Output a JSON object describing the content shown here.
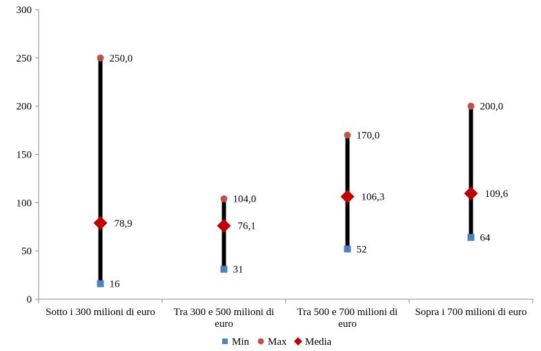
{
  "chart_data": {
    "type": "scatter",
    "title": "",
    "xlabel": "",
    "ylabel": "",
    "ylim": [
      0,
      300
    ],
    "yticks": [
      "0",
      "50",
      "100",
      "150",
      "200",
      "250",
      "300"
    ],
    "categories": [
      [
        "Sotto i 300 milioni di euro"
      ],
      [
        "Tra 300 e 500 milioni di",
        "euro"
      ],
      [
        "Tra 500 e 700 milioni di",
        "euro"
      ],
      [
        "Sopra i 700 milioni di euro"
      ]
    ],
    "series": [
      {
        "name": "Min",
        "values": [
          16,
          31,
          52,
          64
        ],
        "labels": [
          "16",
          "31",
          "52",
          "64"
        ],
        "color": "#4f81bd",
        "marker": "square"
      },
      {
        "name": "Max",
        "values": [
          250.0,
          104.0,
          170.0,
          200.0
        ],
        "labels": [
          "250,0",
          "104,0",
          "170,0",
          "200,0"
        ],
        "color": "#c0504d",
        "marker": "circle"
      },
      {
        "name": "Media",
        "values": [
          78.9,
          76.1,
          106.3,
          109.6
        ],
        "labels": [
          "78,9",
          "76,1",
          "106,3",
          "109,6"
        ],
        "color": "#c00000",
        "marker": "diamond"
      }
    ],
    "range_bars": "high-low lines from Min to Max",
    "grid": false,
    "legend_position": "bottom"
  }
}
